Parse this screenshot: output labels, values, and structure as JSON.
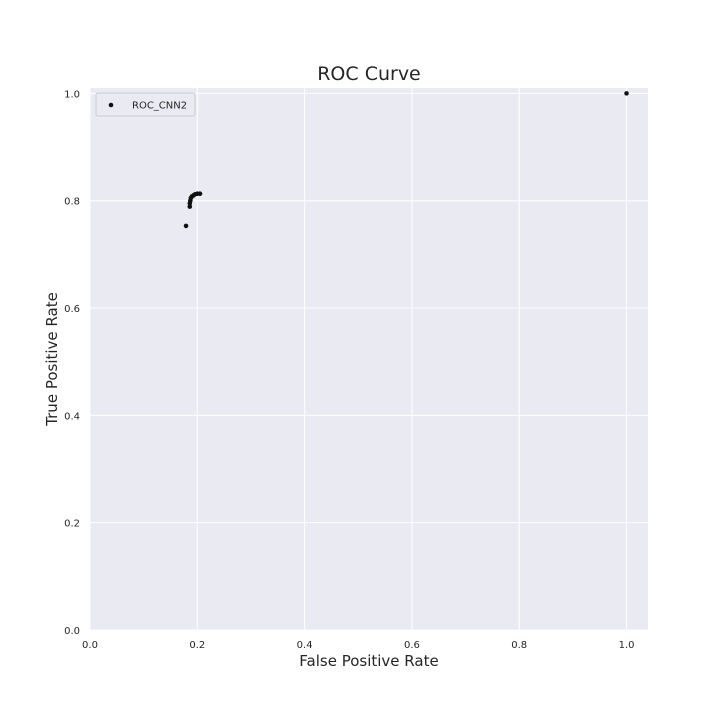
{
  "chart_data": {
    "type": "scatter",
    "title": "ROC Curve",
    "xlabel": "False Positive Rate",
    "ylabel": "True Positive Rate",
    "xlim": [
      0.0,
      1.04
    ],
    "ylim": [
      0.0,
      1.01
    ],
    "xticks": [
      "0.0",
      "0.2",
      "0.4",
      "0.6",
      "0.8",
      "1.0"
    ],
    "yticks": [
      "0.0",
      "0.2",
      "0.4",
      "0.6",
      "0.8",
      "1.0"
    ],
    "grid": true,
    "legend_position": "upper-left",
    "series": [
      {
        "name": "ROC_CNN2",
        "color": "#111111",
        "marker": "dot",
        "points": [
          {
            "x": 0.179,
            "y": 0.753
          },
          {
            "x": 0.186,
            "y": 0.789
          },
          {
            "x": 0.186,
            "y": 0.795
          },
          {
            "x": 0.187,
            "y": 0.8
          },
          {
            "x": 0.188,
            "y": 0.805
          },
          {
            "x": 0.19,
            "y": 0.808
          },
          {
            "x": 0.193,
            "y": 0.81
          },
          {
            "x": 0.196,
            "y": 0.812
          },
          {
            "x": 0.2,
            "y": 0.813
          },
          {
            "x": 0.205,
            "y": 0.813
          },
          {
            "x": 1.0,
            "y": 1.0
          }
        ]
      }
    ]
  },
  "colors": {
    "plot_background": "#eaeaf2",
    "grid": "#ffffff",
    "legend_background": "#eaeaf2",
    "legend_border": "#cccccc",
    "text": "#262626"
  }
}
